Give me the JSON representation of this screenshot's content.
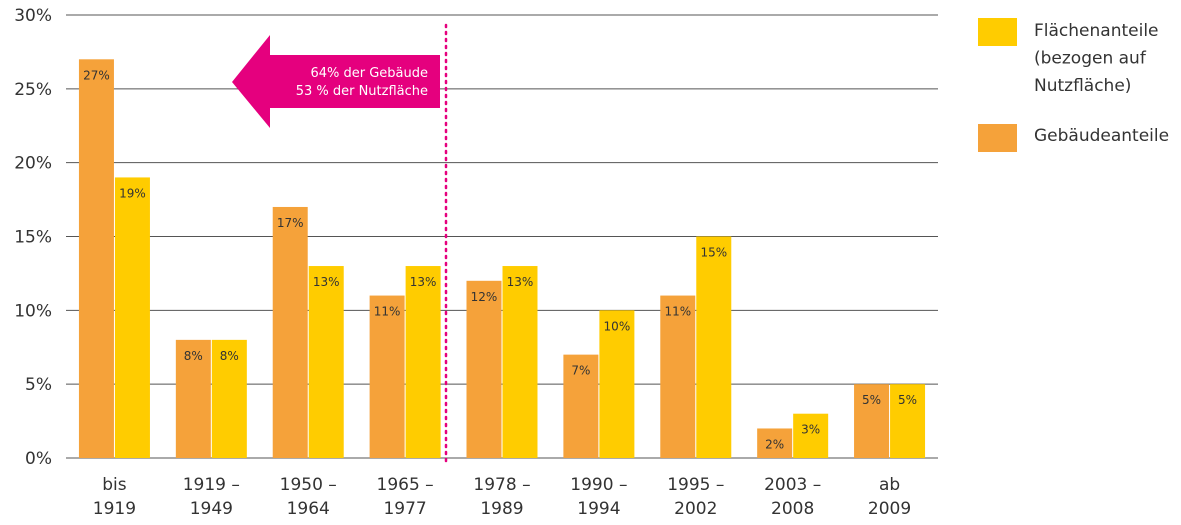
{
  "chart_data": {
    "type": "bar",
    "categories": [
      "bis\n1919",
      "1919 –\n1949",
      "1950 –\n1964",
      "1965 –\n1977",
      "1978 –\n1989",
      "1990 –\n1994",
      "1995 –\n2002",
      "2003 –\n2008",
      "ab\n2009"
    ],
    "series": [
      {
        "name": "Gebäudeanteile",
        "color": "#f5a23a",
        "values": [
          27,
          8,
          17,
          11,
          12,
          7,
          11,
          2,
          5
        ],
        "value_labels": [
          "27%",
          "8%",
          "17%",
          "11%",
          "12%",
          "7%",
          "11%",
          "2%",
          "5%"
        ]
      },
      {
        "name": "Flächenanteile\n(bezogen auf\nNutzfläche)",
        "color": "#ffcc00",
        "values": [
          19,
          8,
          13,
          13,
          13,
          10,
          15,
          3,
          5
        ],
        "value_labels": [
          "19%",
          "8%",
          "13%",
          "13%",
          "13%",
          "10%",
          "15%",
          "3%",
          "5%"
        ]
      }
    ],
    "ylim": [
      0,
      30
    ],
    "yticks": [
      {
        "value": 0,
        "label": "0%"
      },
      {
        "value": 5,
        "label": "5%"
      },
      {
        "value": 10,
        "label": "10%"
      },
      {
        "value": 15,
        "label": "15%"
      },
      {
        "value": 20,
        "label": "20%"
      },
      {
        "value": 25,
        "label": "25%"
      },
      {
        "value": 30,
        "label": "30%"
      }
    ],
    "grid": true,
    "annotation": "64% der Gebäude\n53 % der Nutzfläche",
    "annotation_color": "#e5007e"
  }
}
